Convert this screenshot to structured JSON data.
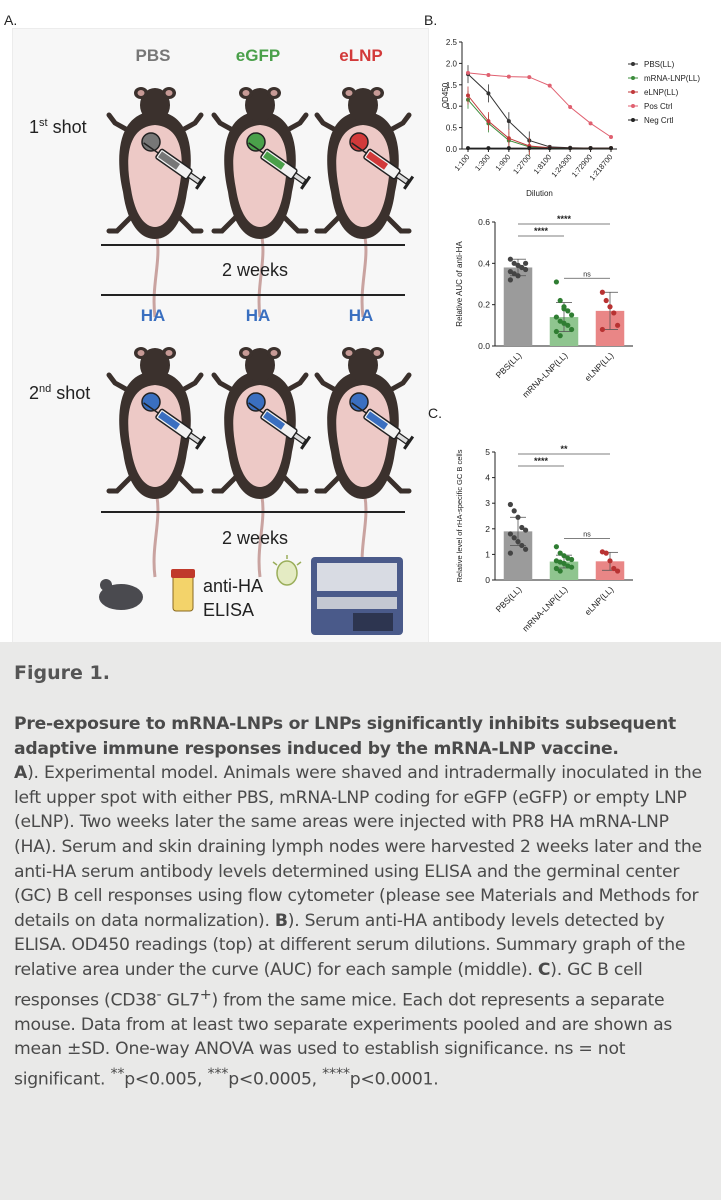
{
  "panel_a": {
    "label": "A.",
    "groups_first": [
      {
        "label": "PBS",
        "color": "#777777"
      },
      {
        "label": "eGFP",
        "color": "#4aa04a"
      },
      {
        "label": "eLNP",
        "color": "#d23a3a"
      }
    ],
    "groups_second": [
      {
        "label": "HA",
        "color": "#3a6fc0"
      },
      {
        "label": "HA",
        "color": "#3a6fc0"
      },
      {
        "label": "HA",
        "color": "#3a6fc0"
      }
    ],
    "shot1_prefix": "1",
    "shot1_sup": "st",
    "shot1_suffix": " shot",
    "shot2_prefix": "2",
    "shot2_sup": "nd",
    "shot2_suffix": " shot",
    "interval1": "2 weeks",
    "interval2": "2 weeks",
    "readout_line1": "anti-HA",
    "readout_line2": "ELISA"
  },
  "panel_b_label": "B.",
  "panel_c_label": "C.",
  "chart_data": [
    {
      "type": "line",
      "panel": "B-top",
      "ylabel": "OD450",
      "xlabel": "Dilution",
      "categories": [
        "1:100",
        "1:300",
        "1:900",
        "1:2700",
        "1:8100",
        "1:24300",
        "1:72900",
        "1:218700"
      ],
      "ylim": [
        0,
        2.5
      ],
      "yticks": [
        "0.0",
        "0.5",
        "1.0",
        "1.5",
        "2.0",
        "2.5"
      ],
      "legend_position": "right",
      "series": [
        {
          "name": "PBS(LL)",
          "color": "#333333",
          "values": [
            1.75,
            1.3,
            0.65,
            0.2,
            0.05,
            0.03,
            0.02,
            0.02
          ]
        },
        {
          "name": "mRNA-LNP(LL)",
          "color": "#3c8c3c",
          "values": [
            1.15,
            0.6,
            0.2,
            0.05,
            0.02,
            0.02,
            0.02,
            0.02
          ]
        },
        {
          "name": "eLNP(LL)",
          "color": "#c0393b",
          "values": [
            1.25,
            0.65,
            0.25,
            0.07,
            0.03,
            0.02,
            0.02,
            0.02
          ]
        },
        {
          "name": "Pos Ctrl",
          "color": "#e06070",
          "values": [
            1.78,
            1.73,
            1.69,
            1.68,
            1.48,
            0.98,
            0.6,
            0.28
          ]
        },
        {
          "name": "Neg Crtl",
          "color": "#222222",
          "values": [
            0.02,
            0.02,
            0.02,
            0.02,
            0.02,
            0.02,
            0.02,
            0.02
          ]
        }
      ]
    },
    {
      "type": "bar",
      "panel": "B-bottom",
      "ylabel": "Relative AUC of anti-HA",
      "categories": [
        "PBS(LL)",
        "mRNA-LNP(LL)",
        "eLNP(LL)"
      ],
      "values": [
        0.38,
        0.14,
        0.17
      ],
      "sd": [
        0.04,
        0.07,
        0.09
      ],
      "colors": [
        "#9b9b9b",
        "#8fc58f",
        "#e98686"
      ],
      "dot_colors": [
        "#444444",
        "#2f7d32",
        "#b83232"
      ],
      "points": [
        [
          0.42,
          0.4,
          0.39,
          0.38,
          0.37,
          0.36,
          0.35,
          0.34,
          0.38,
          0.4,
          0.32
        ],
        [
          0.31,
          0.22,
          0.19,
          0.17,
          0.15,
          0.14,
          0.12,
          0.11,
          0.1,
          0.08,
          0.07,
          0.05,
          0.18
        ],
        [
          0.26,
          0.22,
          0.19,
          0.16,
          0.1,
          0.08
        ]
      ],
      "ylim": [
        0,
        0.6
      ],
      "yticks": [
        "0.0",
        "0.2",
        "0.4",
        "0.6"
      ],
      "significance": [
        {
          "from": 0,
          "to": 1,
          "label": "****"
        },
        {
          "from": 0,
          "to": 2,
          "label": "****"
        },
        {
          "from": 1,
          "to": 2,
          "label": "ns"
        }
      ]
    },
    {
      "type": "bar",
      "panel": "C",
      "ylabel": "Relative level of rHA-specific GC B cells",
      "categories": [
        "PBS(LL)",
        "mRNA-LNP(LL)",
        "eLNP(LL)"
      ],
      "values": [
        1.9,
        0.72,
        0.73
      ],
      "sd": [
        0.55,
        0.25,
        0.35
      ],
      "colors": [
        "#9b9b9b",
        "#8fc58f",
        "#e98686"
      ],
      "dot_colors": [
        "#444444",
        "#2f7d32",
        "#b83232"
      ],
      "points": [
        [
          2.95,
          2.7,
          2.45,
          2.05,
          1.95,
          1.8,
          1.65,
          1.5,
          1.35,
          1.2,
          1.05
        ],
        [
          1.3,
          1.05,
          0.95,
          0.85,
          0.8,
          0.75,
          0.7,
          0.65,
          0.55,
          0.5,
          0.45,
          0.35
        ],
        [
          1.1,
          1.05,
          0.75,
          0.45,
          0.35
        ]
      ],
      "ylim": [
        0,
        5
      ],
      "yticks": [
        "0",
        "1",
        "2",
        "3",
        "4",
        "5"
      ],
      "significance": [
        {
          "from": 0,
          "to": 1,
          "label": "****"
        },
        {
          "from": 0,
          "to": 2,
          "label": "**"
        },
        {
          "from": 1,
          "to": 2,
          "label": "ns"
        }
      ]
    }
  ],
  "caption": {
    "figure_label": "Figure 1.",
    "title": "Pre-exposure to mRNA-LNPs or LNPs significantly inhibits subsequent adaptive immune responses induced by the mRNA-LNP vaccine.",
    "a_marker": "A",
    "a_text": "). Experimental model. Animals were shaved and intradermally inoculated in the left upper spot with either PBS, mRNA-LNP coding for eGFP (eGFP) or empty LNP (eLNP). Two weeks later the same areas were injected with PR8 HA mRNA-LNP (HA). Serum and skin draining lymph nodes were harvested 2 weeks later and the anti-HA serum antibody levels determined using ELISA and the germinal center (GC) B cell responses using flow cytometer (please see Materials and Methods for details on data normalization). ",
    "b_marker": "B",
    "b_text": "). Serum anti-HA antibody levels detected by ELISA. OD450 readings (top) at different serum dilutions. Summary graph of the relative area under the curve (AUC) for each sample (middle). ",
    "c_marker": "C",
    "c_text_1": "). GC B cell responses (CD38",
    "c_sup_1": "-",
    "c_text_2": " GL7",
    "c_sup_2": "+",
    "c_text_3": ") from the same mice. Each dot represents a separate mouse. Data from at least two separate experiments pooled and are shown as mean ±SD. One-way ANOVA was used to establish significance. ns = not significant. ",
    "sig_1_sup": "**",
    "sig_1": "p<0.005, ",
    "sig_2_sup": "***",
    "sig_2": "p<0.0005, ",
    "sig_3_sup": "****",
    "sig_3": "p<0.0001."
  }
}
